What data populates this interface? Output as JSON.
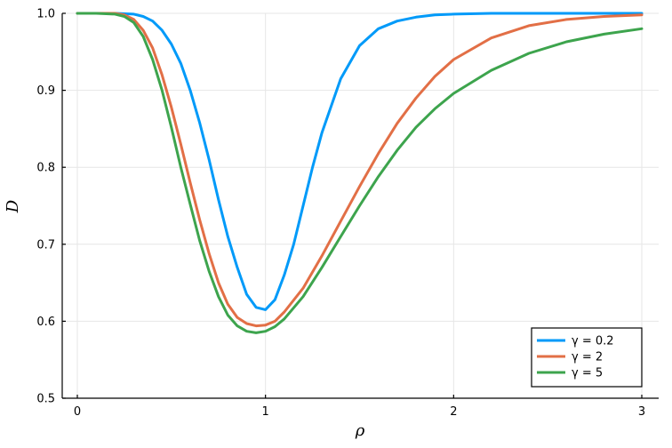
{
  "chart_data": {
    "type": "line",
    "xlabel": "ρ",
    "ylabel": "D",
    "xlim": [
      0,
      3
    ],
    "ylim": [
      0.5,
      1.0
    ],
    "xticks": [
      0,
      1,
      2,
      3
    ],
    "yticks": [
      0.5,
      0.6,
      0.7,
      0.8,
      0.9,
      1.0
    ],
    "xtick_labels": [
      "0",
      "1",
      "2",
      "3"
    ],
    "ytick_labels": [
      "0.5",
      "0.6",
      "0.7",
      "0.8",
      "0.9",
      "1.0"
    ],
    "grid": true,
    "legend_position": "bottom-right",
    "series": [
      {
        "name": "γ = 0.2",
        "color": "#009af9",
        "x": [
          0.0,
          0.1,
          0.2,
          0.3,
          0.35,
          0.4,
          0.45,
          0.5,
          0.55,
          0.6,
          0.65,
          0.7,
          0.75,
          0.8,
          0.85,
          0.9,
          0.95,
          1.0,
          1.05,
          1.1,
          1.15,
          1.2,
          1.25,
          1.3,
          1.4,
          1.5,
          1.6,
          1.7,
          1.8,
          1.9,
          2.0,
          2.2,
          2.5,
          3.0
        ],
        "y": [
          1.0,
          1.0,
          1.0,
          0.999,
          0.996,
          0.99,
          0.978,
          0.96,
          0.935,
          0.9,
          0.858,
          0.81,
          0.758,
          0.71,
          0.67,
          0.635,
          0.618,
          0.615,
          0.628,
          0.66,
          0.7,
          0.75,
          0.8,
          0.845,
          0.915,
          0.958,
          0.98,
          0.99,
          0.995,
          0.998,
          0.999,
          1.0,
          1.0,
          1.0
        ]
      },
      {
        "name": "γ = 2",
        "color": "#e26f46",
        "x": [
          0.0,
          0.1,
          0.2,
          0.25,
          0.3,
          0.35,
          0.4,
          0.45,
          0.5,
          0.55,
          0.6,
          0.65,
          0.7,
          0.75,
          0.8,
          0.85,
          0.9,
          0.95,
          1.0,
          1.05,
          1.1,
          1.2,
          1.3,
          1.4,
          1.5,
          1.6,
          1.7,
          1.8,
          1.9,
          2.0,
          2.2,
          2.4,
          2.6,
          2.8,
          3.0
        ],
        "y": [
          1.0,
          1.0,
          1.0,
          0.998,
          0.992,
          0.978,
          0.955,
          0.92,
          0.878,
          0.83,
          0.78,
          0.732,
          0.688,
          0.65,
          0.622,
          0.605,
          0.597,
          0.594,
          0.595,
          0.6,
          0.612,
          0.643,
          0.685,
          0.73,
          0.775,
          0.818,
          0.857,
          0.89,
          0.918,
          0.94,
          0.968,
          0.984,
          0.992,
          0.996,
          0.998
        ]
      },
      {
        "name": "γ = 5",
        "color": "#3da44d",
        "x": [
          0.0,
          0.1,
          0.2,
          0.25,
          0.3,
          0.35,
          0.4,
          0.45,
          0.5,
          0.55,
          0.6,
          0.65,
          0.7,
          0.75,
          0.8,
          0.85,
          0.9,
          0.95,
          1.0,
          1.05,
          1.1,
          1.2,
          1.3,
          1.4,
          1.5,
          1.6,
          1.7,
          1.8,
          1.9,
          2.0,
          2.2,
          2.4,
          2.6,
          2.8,
          3.0
        ],
        "y": [
          1.0,
          1.0,
          0.999,
          0.996,
          0.988,
          0.97,
          0.94,
          0.9,
          0.852,
          0.8,
          0.752,
          0.705,
          0.665,
          0.632,
          0.608,
          0.594,
          0.587,
          0.585,
          0.587,
          0.593,
          0.603,
          0.632,
          0.67,
          0.71,
          0.75,
          0.788,
          0.822,
          0.852,
          0.876,
          0.896,
          0.926,
          0.948,
          0.963,
          0.973,
          0.98
        ]
      }
    ]
  }
}
